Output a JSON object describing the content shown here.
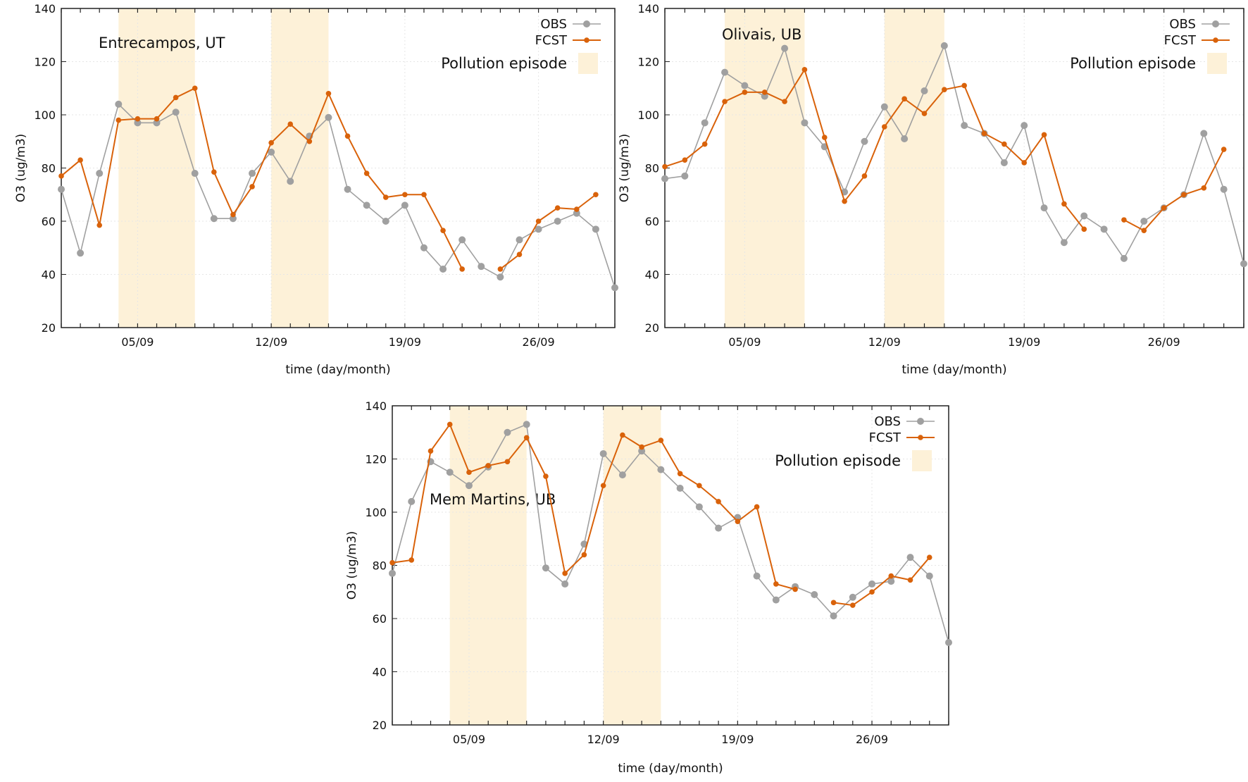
{
  "chart_data": [
    {
      "type": "line",
      "title": "Entrecampos, UT",
      "xlabel": "time (day/month)",
      "ylabel": "O3 (ug/m3)",
      "ylim": [
        20,
        140
      ],
      "yticks": [
        20,
        40,
        60,
        80,
        100,
        120,
        140
      ],
      "xlim": [
        1,
        30
      ],
      "xticks": [
        {
          "day": 5,
          "label": "05/09"
        },
        {
          "day": 12,
          "label": "12/09"
        },
        {
          "day": 19,
          "label": "19/09"
        },
        {
          "day": 26,
          "label": "26/09"
        }
      ],
      "x": [
        1,
        2,
        3,
        4,
        5,
        6,
        7,
        8,
        9,
        10,
        11,
        12,
        13,
        14,
        15,
        16,
        17,
        18,
        19,
        20,
        21,
        22,
        23,
        24,
        25,
        26,
        27,
        28,
        29,
        30
      ],
      "episodes": [
        [
          4,
          8
        ],
        [
          12,
          15
        ]
      ],
      "legend": {
        "placement": "top-right",
        "obs": "OBS",
        "fcst": "FCST",
        "episode": "Pollution episode"
      },
      "series": [
        {
          "name": "OBS",
          "color": "#a0a0a0",
          "values": [
            72,
            48,
            78,
            104,
            97,
            97,
            101,
            78,
            61,
            61,
            78,
            86,
            75,
            92,
            99,
            72,
            66,
            60,
            66,
            50,
            42,
            53,
            43,
            39,
            53,
            57,
            60,
            63,
            57,
            35
          ]
        },
        {
          "name": "FCST",
          "color": "#d9620a",
          "values": [
            77,
            83,
            58.5,
            98,
            98.5,
            98.5,
            106.5,
            110,
            78.5,
            62.5,
            73,
            89.5,
            96.5,
            90,
            108,
            92,
            78,
            69,
            70,
            70,
            56.5,
            42,
            null,
            42,
            47.5,
            60,
            65,
            64.5,
            70,
            null
          ]
        }
      ]
    },
    {
      "type": "line",
      "title": "Olivais, UB",
      "xlabel": "time (day/month)",
      "ylabel": "O3 (ug/m3)",
      "ylim": [
        20,
        140
      ],
      "yticks": [
        20,
        40,
        60,
        80,
        100,
        120,
        140
      ],
      "xlim": [
        1,
        30
      ],
      "xticks": [
        {
          "day": 5,
          "label": "05/09"
        },
        {
          "day": 12,
          "label": "12/09"
        },
        {
          "day": 19,
          "label": "19/09"
        },
        {
          "day": 26,
          "label": "26/09"
        }
      ],
      "x": [
        1,
        2,
        3,
        4,
        5,
        6,
        7,
        8,
        9,
        10,
        11,
        12,
        13,
        14,
        15,
        16,
        17,
        18,
        19,
        20,
        21,
        22,
        23,
        24,
        25,
        26,
        27,
        28,
        29,
        30
      ],
      "episodes": [
        [
          4,
          8
        ],
        [
          12,
          15
        ]
      ],
      "legend": {
        "placement": "top-right",
        "obs": "OBS",
        "fcst": "FCST",
        "episode": "Pollution episode"
      },
      "series": [
        {
          "name": "OBS",
          "color": "#a0a0a0",
          "values": [
            76,
            77,
            97,
            116,
            111,
            107,
            125,
            97,
            88,
            71,
            90,
            103,
            91,
            109,
            126,
            96,
            93,
            82,
            96,
            65,
            52,
            62,
            57,
            46,
            60,
            65,
            70,
            93,
            72,
            44
          ]
        },
        {
          "name": "FCST",
          "color": "#d9620a",
          "values": [
            80.5,
            83,
            89,
            105,
            108.5,
            108.5,
            105,
            117,
            91.5,
            67.5,
            77,
            95.5,
            106,
            100.5,
            109.5,
            111,
            93,
            89,
            82,
            92.5,
            66.5,
            57,
            null,
            60.5,
            56.5,
            65,
            70,
            72.5,
            87,
            null
          ]
        }
      ]
    },
    {
      "type": "line",
      "title": "Mem Martins, UB",
      "xlabel": "time (day/month)",
      "ylabel": "O3 (ug/m3)",
      "ylim": [
        20,
        140
      ],
      "yticks": [
        20,
        40,
        60,
        80,
        100,
        120,
        140
      ],
      "xlim": [
        1,
        30
      ],
      "xticks": [
        {
          "day": 5,
          "label": "05/09"
        },
        {
          "day": 12,
          "label": "12/09"
        },
        {
          "day": 19,
          "label": "19/09"
        },
        {
          "day": 26,
          "label": "26/09"
        }
      ],
      "x": [
        1,
        2,
        3,
        4,
        5,
        6,
        7,
        8,
        9,
        10,
        11,
        12,
        13,
        14,
        15,
        16,
        17,
        18,
        19,
        20,
        21,
        22,
        23,
        24,
        25,
        26,
        27,
        28,
        29,
        30
      ],
      "episodes": [
        [
          4,
          8
        ],
        [
          12,
          15
        ]
      ],
      "legend": {
        "placement": "top-right",
        "obs": "OBS",
        "fcst": "FCST",
        "episode": "Pollution episode"
      },
      "series": [
        {
          "name": "OBS",
          "color": "#a0a0a0",
          "values": [
            77,
            104,
            119,
            115,
            110,
            117,
            130,
            133,
            79,
            73,
            88,
            122,
            114,
            123,
            116,
            109,
            102,
            94,
            98,
            76,
            67,
            72,
            69,
            61,
            68,
            73,
            74,
            83,
            76,
            51
          ]
        },
        {
          "name": "FCST",
          "color": "#d9620a",
          "values": [
            81,
            82,
            123,
            133,
            115,
            117.5,
            119,
            128,
            113.5,
            77,
            84,
            110,
            129,
            124.5,
            127,
            114.5,
            110,
            104,
            96.5,
            102,
            73,
            71,
            null,
            66,
            65,
            70,
            76,
            74.5,
            83,
            null
          ]
        }
      ]
    }
  ],
  "colors": {
    "episode": "#fdf1d8",
    "obs": "#a0a0a0",
    "fcst": "#d9620a"
  }
}
